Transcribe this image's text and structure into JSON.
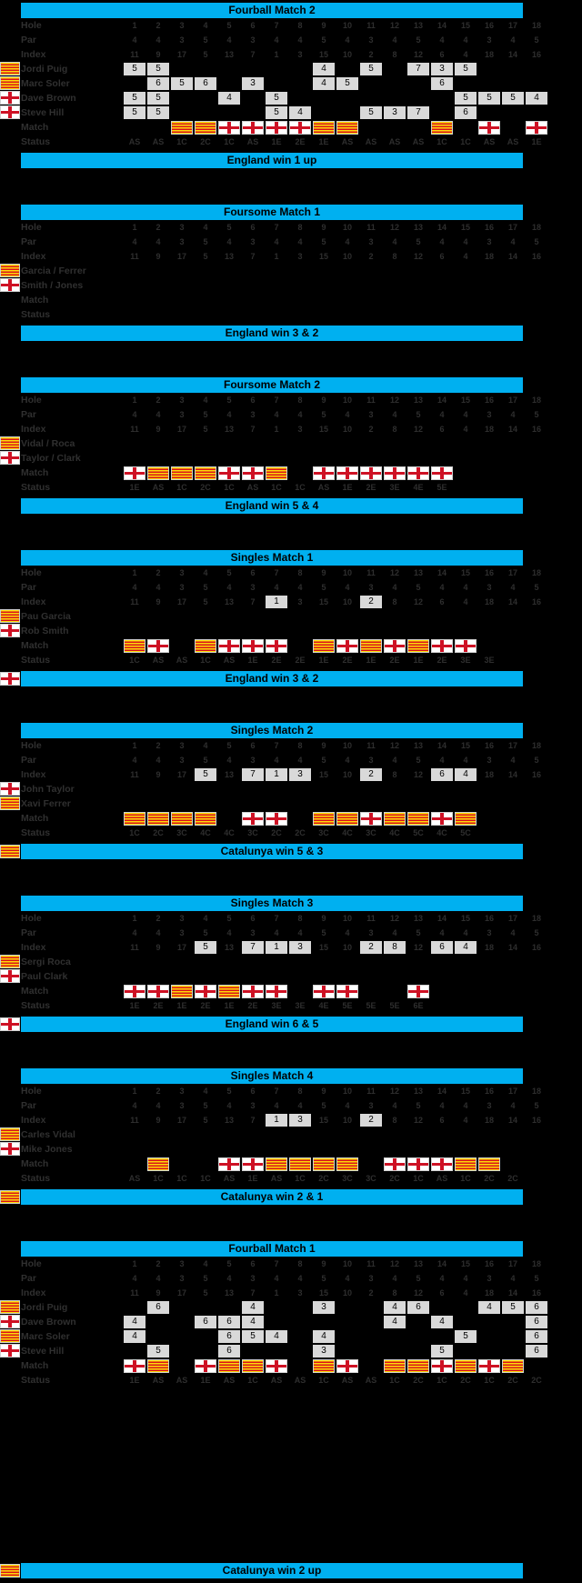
{
  "teams": {
    "catalunya": {
      "name": "Catalunya",
      "flag_yellow": "#FCDD09",
      "flag_red": "#DA121A"
    },
    "england": {
      "name": "England",
      "flag_white": "#FFFFFF",
      "flag_red": "#CE1124"
    }
  },
  "colors": {
    "background": "#000000",
    "header_bar": "#00B0F0",
    "highlight_cell": "#D9D9D9",
    "dim_text": "#2E2E2E"
  },
  "course": {
    "hole_label": "Hole",
    "par_label": "Par",
    "index_label": "Index",
    "match_label": "Match",
    "status_label": "Status",
    "holes": [
      1,
      2,
      3,
      4,
      5,
      6,
      7,
      8,
      9,
      10,
      11,
      12,
      13,
      14,
      15,
      16,
      17,
      18
    ],
    "par": [
      4,
      4,
      3,
      5,
      4,
      3,
      4,
      4,
      5,
      4,
      3,
      4,
      5,
      4,
      4,
      3,
      4,
      5
    ],
    "index": [
      11,
      9,
      17,
      5,
      13,
      7,
      1,
      3,
      15,
      10,
      2,
      8,
      12,
      6,
      4,
      18,
      14,
      16
    ]
  },
  "matches": [
    {
      "title": "Fourball Match 2",
      "result": "England win 1 up",
      "result_flag": null,
      "index_highlights": [],
      "players": [
        {
          "team": "catalunya",
          "name": "Jordi Puig",
          "scores": {
            "1": 5,
            "2": 5,
            "9": 4,
            "11": 5,
            "13": 7,
            "14": 3,
            "15": 5
          }
        },
        {
          "team": "catalunya",
          "name": "Marc Soler",
          "scores": {
            "2": 6,
            "3": 5,
            "4": 6,
            "6": 3,
            "9": 4,
            "10": 5,
            "14": 6
          }
        },
        {
          "team": "england",
          "name": "Dave Brown",
          "scores": {
            "1": 5,
            "2": 5,
            "5": 4,
            "7": 5,
            "15": 5,
            "16": 5,
            "17": 5,
            "18": 4
          }
        },
        {
          "team": "england",
          "name": "Steve Hill",
          "scores": {
            "1": 5,
            "2": 5,
            "7": 5,
            "8": 4,
            "11": 5,
            "12": 3,
            "13": 7,
            "15": 6
          }
        }
      ],
      "hole_winners": {
        "3": "C",
        "4": "C",
        "5": "E",
        "6": "E",
        "7": "E",
        "8": "E",
        "9": "C",
        "10": "C",
        "14": "C",
        "16": "E",
        "18": "E"
      },
      "status": {
        "1": "AS",
        "2": "AS",
        "3": "1C",
        "4": "2C",
        "5": "1C",
        "6": "AS",
        "7": "1E",
        "8": "2E",
        "9": "1E",
        "10": "AS",
        "11": "AS",
        "12": "AS",
        "13": "AS",
        "14": "1C",
        "15": "1C",
        "16": "AS",
        "17": "AS",
        "18": "1E"
      },
      "gap_before_result": false
    },
    {
      "title": "Foursome Match 1",
      "result": "England win 3 & 2",
      "result_flag": null,
      "index_highlights": [],
      "players": [
        {
          "team": "catalunya",
          "name": "Garcia / Ferrer",
          "scores": {}
        },
        {
          "team": "england",
          "name": "Smith / Jones",
          "scores": {}
        }
      ],
      "hole_winners": {},
      "status": {},
      "gap_before_result": false
    },
    {
      "title": "Foursome Match 2",
      "result": "England win 5 & 4",
      "result_flag": null,
      "index_highlights": [],
      "players": [
        {
          "team": "catalunya",
          "name": "Vidal / Roca",
          "scores": {}
        },
        {
          "team": "england",
          "name": "Taylor / Clark",
          "scores": {}
        }
      ],
      "hole_winners": {
        "1": "E",
        "2": "C",
        "3": "C",
        "4": "C",
        "5": "E",
        "6": "E",
        "7": "C",
        "9": "E",
        "10": "E",
        "11": "E",
        "12": "E",
        "13": "E",
        "14": "E"
      },
      "status": {
        "1": "1E",
        "2": "AS",
        "3": "1C",
        "4": "2C",
        "5": "1C",
        "6": "AS",
        "7": "1C",
        "8": "1C",
        "9": "AS",
        "10": "1E",
        "11": "2E",
        "12": "3E",
        "13": "4E",
        "14": "5E"
      },
      "gap_before_result": false
    },
    {
      "title": "Singles Match 1",
      "result": "England win 3 & 2",
      "result_flag": "england",
      "index_highlights": [
        7,
        11
      ],
      "players": [
        {
          "team": "catalunya",
          "name": "Pau Garcia",
          "scores": {}
        },
        {
          "team": "england",
          "name": "Rob Smith",
          "scores": {}
        }
      ],
      "hole_winners": {
        "1": "C",
        "2": "E",
        "4": "C",
        "5": "E",
        "6": "E",
        "7": "E",
        "9": "C",
        "10": "E",
        "11": "C",
        "12": "E",
        "13": "C",
        "14": "E",
        "15": "E"
      },
      "status": {
        "1": "1C",
        "2": "AS",
        "3": "AS",
        "4": "1C",
        "5": "AS",
        "6": "1E",
        "7": "2E",
        "8": "2E",
        "9": "1E",
        "10": "2E",
        "11": "1E",
        "12": "2E",
        "13": "1E",
        "14": "2E",
        "15": "3E",
        "16": "3E"
      },
      "gap_before_result": false
    },
    {
      "title": "Singles Match 2",
      "result": "Catalunya win 5 & 3",
      "result_flag": "catalunya",
      "index_highlights": [
        4,
        6,
        7,
        8,
        11,
        14,
        15
      ],
      "players": [
        {
          "team": "england",
          "name": "John Taylor",
          "scores": {}
        },
        {
          "team": "catalunya",
          "name": "Xavi Ferrer",
          "scores": {}
        }
      ],
      "hole_winners": {
        "1": "C",
        "2": "C",
        "3": "C",
        "4": "C",
        "6": "E",
        "7": "E",
        "9": "C",
        "10": "C",
        "11": "E",
        "12": "C",
        "13": "C",
        "14": "E",
        "15": "C"
      },
      "status": {
        "1": "1C",
        "2": "2C",
        "3": "3C",
        "4": "4C",
        "5": "4C",
        "6": "3C",
        "7": "2C",
        "8": "2C",
        "9": "3C",
        "10": "4C",
        "11": "3C",
        "12": "4C",
        "13": "5C",
        "14": "4C",
        "15": "5C"
      },
      "gap_before_result": false
    },
    {
      "title": "Singles Match 3",
      "result": "England win 6 & 5",
      "result_flag": "england",
      "index_highlights": [
        4,
        6,
        7,
        8,
        11,
        12,
        14,
        15
      ],
      "players": [
        {
          "team": "catalunya",
          "name": "Sergi Roca",
          "scores": {}
        },
        {
          "team": "england",
          "name": "Paul Clark",
          "scores": {}
        }
      ],
      "hole_winners": {
        "1": "E",
        "2": "E",
        "3": "C",
        "4": "E",
        "5": "C",
        "6": "E",
        "7": "E",
        "9": "E",
        "10": "E",
        "13": "E"
      },
      "status": {
        "1": "1E",
        "2": "2E",
        "3": "1E",
        "4": "2E",
        "5": "1E",
        "6": "2E",
        "7": "3E",
        "8": "3E",
        "9": "4E",
        "10": "5E",
        "11": "5E",
        "12": "5E",
        "13": "6E"
      },
      "gap_before_result": false
    },
    {
      "title": "Singles Match 4",
      "result": "Catalunya win 2 & 1",
      "result_flag": "catalunya",
      "index_highlights": [
        7,
        8,
        11
      ],
      "players": [
        {
          "team": "catalunya",
          "name": "Carles Vidal",
          "scores": {}
        },
        {
          "team": "england",
          "name": "Mike Jones",
          "scores": {}
        }
      ],
      "hole_winners": {
        "2": "C",
        "5": "E",
        "6": "E",
        "7": "C",
        "8": "C",
        "9": "C",
        "10": "C",
        "12": "E",
        "13": "E",
        "14": "E",
        "15": "C",
        "16": "C"
      },
      "status": {
        "1": "AS",
        "2": "1C",
        "3": "1C",
        "4": "1C",
        "5": "AS",
        "6": "1E",
        "7": "AS",
        "8": "1C",
        "9": "2C",
        "10": "3C",
        "11": "3C",
        "12": "2C",
        "13": "1C",
        "14": "AS",
        "15": "1C",
        "16": "2C",
        "17": "2C"
      },
      "gap_before_result": false
    },
    {
      "title": "Fourball Match 1",
      "result": "Catalunya win 2 up",
      "result_flag": "catalunya",
      "index_highlights": [],
      "players": [
        {
          "team": "catalunya",
          "name": "Jordi Puig",
          "scores": {
            "2": 6,
            "6": 4,
            "9": 3,
            "12": 4,
            "13": 6,
            "16": 4,
            "17": 5,
            "18": 6
          }
        },
        {
          "team": "england",
          "name": "Dave Brown",
          "scores": {
            "1": 4,
            "4": 6,
            "5": 6,
            "6": 4,
            "12": 4,
            "14": 4,
            "18": 6
          }
        },
        {
          "team": "catalunya",
          "name": "Marc Soler",
          "scores": {
            "1": 4,
            "5": 6,
            "6": 5,
            "7": 4,
            "9": 4,
            "15": 5,
            "18": 6
          }
        },
        {
          "team": "england",
          "name": "Steve Hill",
          "scores": {
            "2": 5,
            "5": 6,
            "9": 3,
            "14": 5,
            "18": 6
          }
        }
      ],
      "hole_winners": {
        "1": "E",
        "2": "C",
        "4": "E",
        "5": "C",
        "6": "C",
        "7": "E",
        "9": "C",
        "10": "E",
        "12": "C",
        "13": "C",
        "14": "E",
        "15": "C",
        "16": "E",
        "17": "C"
      },
      "status": {
        "1": "1E",
        "2": "AS",
        "3": "AS",
        "4": "1E",
        "5": "AS",
        "6": "1C",
        "7": "AS",
        "8": "AS",
        "9": "1C",
        "10": "AS",
        "11": "AS",
        "12": "1C",
        "13": "2C",
        "14": "1C",
        "15": "2C",
        "16": "1C",
        "17": "2C",
        "18": "2C"
      },
      "gap_before_result": true
    }
  ]
}
